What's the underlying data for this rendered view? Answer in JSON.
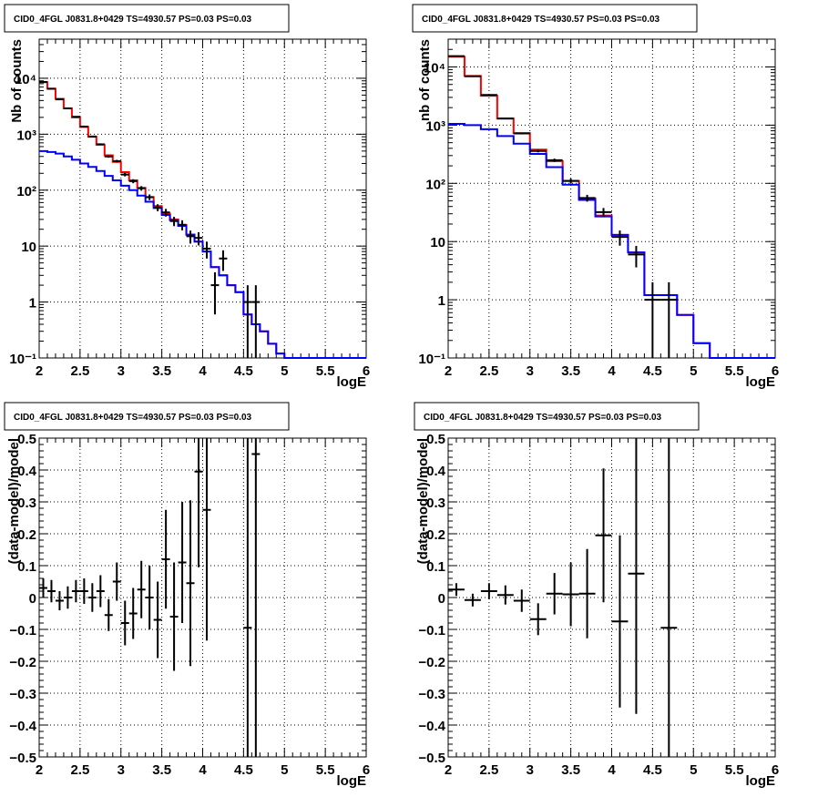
{
  "colors": {
    "data": "#000000",
    "total_model": "#ff0000",
    "component_model": "#0000ff",
    "grid": "#000000",
    "frame": "#000000"
  },
  "chart_data": [
    {
      "id": "counts-fine",
      "type": "step-histogram",
      "title": "CID0_4FGL J0831.8+0429 TS=4930.57 PS=0.03 PS=0.03",
      "xlabel": "logE",
      "ylabel": "Nb of counts",
      "xlim": [
        2,
        6
      ],
      "ylim": [
        0.1,
        50000
      ],
      "ylog": true,
      "grid": true,
      "x_ticks": [
        "2",
        "2.5",
        "3",
        "3.5",
        "4",
        "4.5",
        "5",
        "5.5",
        "6"
      ],
      "y_ticks": [
        "10⁻¹",
        "1",
        "10",
        "10²",
        "10³",
        "10⁴"
      ],
      "bin_edges": [
        2.0,
        2.1,
        2.2,
        2.3,
        2.4,
        2.5,
        2.6,
        2.7,
        2.8,
        2.9,
        3.0,
        3.1,
        3.2,
        3.3,
        3.4,
        3.5,
        3.6,
        3.7,
        3.8,
        3.9,
        4.0,
        4.1,
        4.2,
        4.3,
        4.4,
        4.5,
        4.6,
        4.7,
        4.8,
        4.9,
        5.0,
        5.1,
        5.2,
        5.3,
        5.4,
        5.5,
        5.6,
        5.7,
        5.8,
        5.9,
        6.0
      ],
      "series": [
        {
          "role": "total_model",
          "values": [
            8500,
            6500,
            4300,
            2900,
            2000,
            1350,
            900,
            650,
            420,
            320,
            210,
            150,
            110,
            75,
            52,
            38,
            30,
            24,
            16,
            12,
            8,
            4.2,
            3.0,
            2.0,
            1.5,
            0.6,
            0.4,
            0.3,
            0.18,
            0.12,
            0.1,
            0.1,
            0.1,
            0.1,
            0.1,
            0.1,
            0.1,
            0.1,
            0.1,
            0.1
          ]
        },
        {
          "role": "component_model",
          "values": [
            500,
            480,
            450,
            400,
            350,
            300,
            260,
            220,
            180,
            150,
            120,
            100,
            80,
            62,
            48,
            36,
            29,
            23,
            16,
            12,
            8,
            4.2,
            3.0,
            2.0,
            1.5,
            0.6,
            0.4,
            0.3,
            0.18,
            0.12,
            0.1,
            0.1,
            0.1,
            0.1,
            0.1,
            0.1,
            0.1,
            0.1,
            0.1,
            0.1
          ]
        },
        {
          "role": "data",
          "x": [
            2.05,
            2.15,
            2.25,
            2.35,
            2.45,
            2.55,
            2.65,
            2.75,
            2.85,
            2.95,
            3.05,
            3.15,
            3.25,
            3.35,
            3.45,
            3.55,
            3.65,
            3.75,
            3.85,
            3.95,
            4.05,
            4.15,
            4.25,
            4.55,
            4.65
          ],
          "y": [
            8600,
            6500,
            4200,
            2900,
            2050,
            1370,
            910,
            660,
            400,
            330,
            190,
            145,
            108,
            75,
            49,
            40,
            28,
            24,
            15,
            14,
            9,
            2,
            6,
            1,
            1
          ],
          "err": [
            93,
            81,
            65,
            54,
            45,
            37,
            30,
            26,
            20,
            18,
            14,
            12,
            10,
            8.7,
            7,
            6.3,
            5.3,
            4.9,
            3.9,
            3.7,
            3,
            1.4,
            2.4,
            1,
            1
          ]
        }
      ]
    },
    {
      "id": "counts-coarse",
      "type": "step-histogram",
      "title": "CID0_4FGL J0831.8+0429 TS=4930.57 PS=0.03 PS=0.03",
      "xlabel": "logE",
      "ylabel": "nb of counts",
      "xlim": [
        2,
        6
      ],
      "ylim": [
        0.1,
        30000
      ],
      "ylog": true,
      "grid": true,
      "x_ticks": [
        "2",
        "2.5",
        "3",
        "3.5",
        "4",
        "4.5",
        "5",
        "5.5",
        "6"
      ],
      "y_ticks": [
        "10⁻¹",
        "1",
        "10",
        "10²",
        "10³",
        "10⁴"
      ],
      "bin_edges": [
        2.0,
        2.2,
        2.4,
        2.6,
        2.8,
        3.0,
        3.2,
        3.4,
        3.6,
        3.8,
        4.0,
        4.2,
        4.4,
        4.6,
        4.8,
        5.0,
        5.2,
        5.4,
        5.6,
        5.8,
        6.0
      ],
      "series": [
        {
          "role": "total_model",
          "values": [
            15000,
            7000,
            3200,
            1300,
            730,
            380,
            240,
            110,
            55,
            28,
            13,
            6.5,
            1.2,
            1.2,
            0.55,
            0.18,
            0.1,
            0.1,
            0.1,
            0.1
          ]
        },
        {
          "role": "component_model",
          "values": [
            1050,
            1000,
            850,
            650,
            480,
            320,
            190,
            95,
            52,
            27,
            13,
            6.5,
            1.2,
            1.2,
            0.55,
            0.18,
            0.1,
            0.1,
            0.1,
            0.1
          ]
        },
        {
          "role": "data",
          "x": [
            2.1,
            2.3,
            2.5,
            2.7,
            2.9,
            3.1,
            3.3,
            3.5,
            3.7,
            3.9,
            4.1,
            4.3,
            4.5,
            4.7
          ],
          "y": [
            15300,
            6900,
            3300,
            1300,
            720,
            360,
            250,
            110,
            56,
            32,
            12,
            6,
            1,
            1
          ],
          "err": [
            124,
            83,
            57,
            36,
            27,
            19,
            16,
            10.5,
            7.5,
            5.7,
            3.5,
            2.4,
            1,
            1
          ]
        }
      ]
    },
    {
      "id": "residuals-fine",
      "type": "scatter-errorbars",
      "title": "CID0_4FGL J0831.8+0429 TS=4930.57 PS=0.03 PS=0.03",
      "xlabel": "logE",
      "ylabel": "(data-model)/model",
      "xlim": [
        2,
        6
      ],
      "ylim": [
        -0.5,
        0.5
      ],
      "grid": true,
      "x_ticks": [
        "2",
        "2.5",
        "3",
        "3.5",
        "4",
        "4.5",
        "5",
        "5.5",
        "6"
      ],
      "y_ticks": [
        "−0.5",
        "−0.4",
        "−0.3",
        "−0.2",
        "−0.1",
        "0",
        "0.1",
        "0.2",
        "0.3",
        "0.4",
        "0.5"
      ],
      "x_halfwidth": 0.05,
      "x": [
        2.05,
        2.15,
        2.25,
        2.35,
        2.45,
        2.55,
        2.65,
        2.75,
        2.85,
        2.95,
        3.05,
        3.15,
        3.25,
        3.35,
        3.45,
        3.55,
        3.65,
        3.75,
        3.85,
        3.95,
        4.05,
        4.55,
        4.65
      ],
      "y": [
        0.03,
        0.02,
        -0.01,
        0.0,
        0.02,
        0.02,
        0.0,
        0.02,
        -0.055,
        0.05,
        -0.08,
        -0.05,
        0.025,
        0.0,
        -0.07,
        0.12,
        -0.06,
        0.11,
        0.045,
        0.395,
        0.275,
        -0.095,
        0.45
      ],
      "err": [
        0.03,
        0.035,
        0.03,
        0.035,
        0.035,
        0.04,
        0.045,
        0.05,
        0.05,
        0.06,
        0.07,
        0.08,
        0.09,
        0.1,
        0.12,
        0.155,
        0.17,
        0.19,
        0.26,
        0.3,
        0.41,
        1.0,
        1.0
      ]
    },
    {
      "id": "residuals-coarse",
      "type": "scatter-errorbars",
      "title": "CID0_4FGL J0831.8+0429 TS=4930.57 PS=0.03 PS=0.03",
      "xlabel": "logE",
      "ylabel": "(data-model)/model",
      "xlim": [
        2,
        6
      ],
      "ylim": [
        -0.5,
        0.5
      ],
      "grid": true,
      "x_ticks": [
        "2",
        "2.5",
        "3",
        "3.5",
        "4",
        "4.5",
        "5",
        "5.5",
        "6"
      ],
      "y_ticks": [
        "−0.5",
        "−0.4",
        "−0.3",
        "−0.2",
        "−0.1",
        "0",
        "0.1",
        "0.2",
        "0.3",
        "0.4",
        "0.5"
      ],
      "x_halfwidth": 0.1,
      "x": [
        2.1,
        2.3,
        2.5,
        2.7,
        2.9,
        3.1,
        3.3,
        3.5,
        3.7,
        3.9,
        4.1,
        4.3,
        4.7
      ],
      "y": [
        0.025,
        -0.008,
        0.02,
        0.008,
        -0.01,
        -0.068,
        0.012,
        0.01,
        0.012,
        0.195,
        -0.075,
        0.075,
        -0.095
      ],
      "err": [
        0.02,
        0.02,
        0.025,
        0.03,
        0.035,
        0.05,
        0.065,
        0.1,
        0.14,
        0.21,
        0.27,
        0.44,
        1.0
      ]
    }
  ]
}
